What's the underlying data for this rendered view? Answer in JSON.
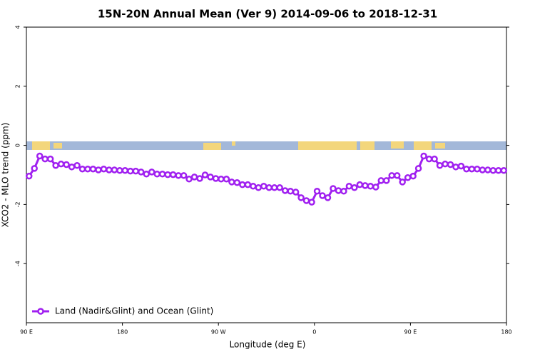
{
  "chart_data": {
    "type": "line",
    "title": "15N-20N Annual Mean (Ver 9)   2014-09-06 to 2018-12-31",
    "x_label": "Longitude (deg E)",
    "y_label": "XCO2 - MLO trend (ppm)",
    "xlim": [
      90,
      540
    ],
    "ylim": [
      -6,
      4
    ],
    "xticks": [
      {
        "value": 90,
        "label": "90 E"
      },
      180,
      {
        "value": 270,
        "label": "90 W"
      },
      {
        "value": 360,
        "label": "0"
      },
      {
        "value": 450,
        "label": "90 E"
      },
      {
        "value": 540,
        "label": "180"
      }
    ],
    "yticks": [
      4,
      2,
      0,
      -2,
      -4
    ],
    "legend": "bottom-left",
    "x": [
      92.5,
      97.5,
      102.5,
      107.5,
      112.5,
      117.5,
      122.5,
      127.5,
      132.5,
      137.5,
      142.5,
      147.5,
      152.5,
      157.5,
      162.5,
      167.5,
      172.5,
      177.5,
      182.5,
      187.5,
      192.5,
      197.5,
      202.5,
      207.5,
      212.5,
      217.5,
      222.5,
      227.5,
      232.5,
      237.5,
      242.5,
      247.5,
      252.5,
      257.5,
      262.5,
      267.5,
      272.5,
      277.5,
      282.5,
      287.5,
      292.5,
      297.5,
      302.5,
      307.5,
      312.5,
      317.5,
      322.5,
      327.5,
      332.5,
      337.5,
      342.5,
      347.5,
      352.5,
      357.5,
      362.5,
      367.5,
      372.5,
      377.5,
      382.5,
      387.5,
      392.5,
      397.5,
      402.5,
      407.5,
      412.5,
      417.5,
      422.5,
      427.5,
      432.5,
      437.5,
      442.5,
      447.5,
      452.5,
      457.5,
      462.5,
      467.5,
      472.5,
      477.5,
      482.5,
      487.5,
      492.5,
      497.5,
      502.5,
      507.5,
      512.5,
      517.5,
      522.5,
      527.5,
      532.5,
      537.5
    ],
    "series": [
      {
        "name": "Land (Nadir&Glint) and Ocean (Glint)",
        "color": "#a020f0",
        "values": [
          -1.04,
          -0.78,
          -0.36,
          -0.46,
          -0.46,
          -0.68,
          -0.63,
          -0.65,
          -0.73,
          -0.68,
          -0.8,
          -0.8,
          -0.8,
          -0.83,
          -0.8,
          -0.83,
          -0.83,
          -0.85,
          -0.85,
          -0.87,
          -0.87,
          -0.9,
          -0.97,
          -0.9,
          -0.97,
          -0.97,
          -0.99,
          -0.99,
          -1.02,
          -1.02,
          -1.14,
          -1.07,
          -1.12,
          -1.0,
          -1.07,
          -1.12,
          -1.14,
          -1.14,
          -1.24,
          -1.26,
          -1.33,
          -1.33,
          -1.38,
          -1.43,
          -1.38,
          -1.43,
          -1.43,
          -1.43,
          -1.53,
          -1.55,
          -1.58,
          -1.77,
          -1.87,
          -1.92,
          -1.55,
          -1.7,
          -1.77,
          -1.46,
          -1.53,
          -1.55,
          -1.38,
          -1.43,
          -1.33,
          -1.36,
          -1.38,
          -1.41,
          -1.19,
          -1.19,
          -1.02,
          -1.02,
          -1.24,
          -1.09,
          -1.04,
          -0.78,
          -0.36,
          -0.46,
          -0.46,
          -0.68,
          -0.63,
          -0.65,
          -0.73,
          -0.7,
          -0.8,
          -0.8,
          -0.8,
          -0.83,
          -0.83,
          -0.85,
          -0.85,
          -0.85
        ]
      }
    ]
  }
}
